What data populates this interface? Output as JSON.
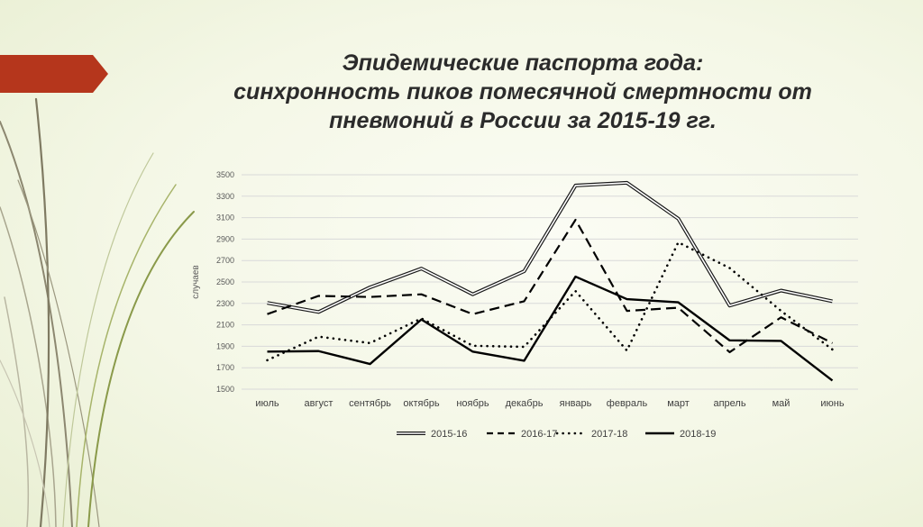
{
  "slide": {
    "title_lines": [
      "Эпидемические паспорта года:",
      "синхронность пиков помесячной смертности от",
      "пневмоний в России за 2015-19 гг."
    ],
    "accent_color": "#b5361c"
  },
  "chart_data": {
    "type": "line",
    "title": "",
    "xlabel": "",
    "ylabel": "случаев",
    "ylim": [
      1500,
      3500
    ],
    "yticks": [
      1500,
      1700,
      1900,
      2100,
      2300,
      2500,
      2700,
      2900,
      3100,
      3300,
      3500
    ],
    "grid": true,
    "legend": "bottom",
    "categories": [
      "июль",
      "август",
      "сентябрь",
      "октябрь",
      "ноябрь",
      "декабрь",
      "январь",
      "февраль",
      "март",
      "апрель",
      "май",
      "июнь"
    ],
    "series": [
      {
        "name": "2015-16",
        "style": "double",
        "values": [
          2305,
          2220,
          2450,
          2625,
          2385,
          2600,
          3400,
          3425,
          3090,
          2280,
          2420,
          2320
        ]
      },
      {
        "name": "2016-17",
        "style": "dashed",
        "values": [
          2200,
          2370,
          2360,
          2385,
          2200,
          2320,
          3080,
          2230,
          2260,
          1845,
          2170,
          1930
        ]
      },
      {
        "name": "2017-18",
        "style": "dotted",
        "values": [
          1770,
          1990,
          1930,
          2160,
          1905,
          1895,
          2415,
          1860,
          2870,
          2630,
          2230,
          1870
        ]
      },
      {
        "name": "2018-19",
        "style": "solid",
        "values": [
          1850,
          1855,
          1735,
          2150,
          1850,
          1765,
          2550,
          2340,
          2310,
          1955,
          1950,
          1580
        ]
      }
    ]
  }
}
